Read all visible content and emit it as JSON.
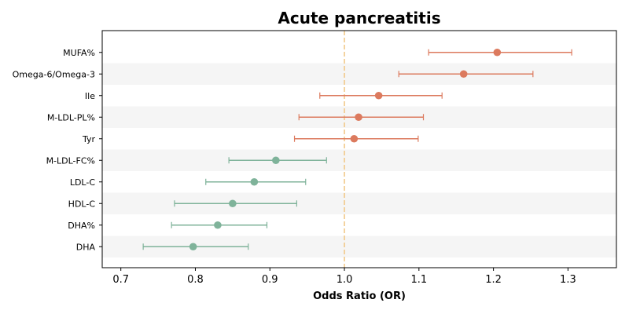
{
  "chart_data": {
    "type": "forest",
    "title": "Acute pancreatitis",
    "xlabel": "Odds Ratio (OR)",
    "ylabel": "",
    "xlim": [
      0.675,
      1.365
    ],
    "xticks": [
      "0.7",
      "0.8",
      "0.9",
      "1.0",
      "1.1",
      "1.2",
      "1.3"
    ],
    "reference_line": 1.0,
    "reference_color": "#f2c98a",
    "colors": {
      "risk": "#dc7a5e",
      "protective": "#7fb39a",
      "band": "#f5f5f5"
    },
    "grid": false,
    "rows": [
      {
        "label": "MUFA%",
        "or": 1.205,
        "lower": 1.113,
        "upper": 1.305,
        "group": "risk"
      },
      {
        "label": "Omega-6/Omega-3",
        "or": 1.16,
        "lower": 1.073,
        "upper": 1.253,
        "group": "risk"
      },
      {
        "label": "Ile",
        "or": 1.046,
        "lower": 0.967,
        "upper": 1.131,
        "group": "risk"
      },
      {
        "label": "M-LDL-PL%",
        "or": 1.019,
        "lower": 0.939,
        "upper": 1.106,
        "group": "risk"
      },
      {
        "label": "Tyr",
        "or": 1.013,
        "lower": 0.933,
        "upper": 1.099,
        "group": "risk"
      },
      {
        "label": "M-LDL-FC%",
        "or": 0.908,
        "lower": 0.845,
        "upper": 0.976,
        "group": "protective"
      },
      {
        "label": "LDL-C",
        "or": 0.879,
        "lower": 0.814,
        "upper": 0.948,
        "group": "protective"
      },
      {
        "label": "HDL-C",
        "or": 0.85,
        "lower": 0.772,
        "upper": 0.936,
        "group": "protective"
      },
      {
        "label": "DHA%",
        "or": 0.83,
        "lower": 0.768,
        "upper": 0.896,
        "group": "protective"
      },
      {
        "label": "DHA",
        "or": 0.797,
        "lower": 0.73,
        "upper": 0.871,
        "group": "protective"
      }
    ]
  }
}
